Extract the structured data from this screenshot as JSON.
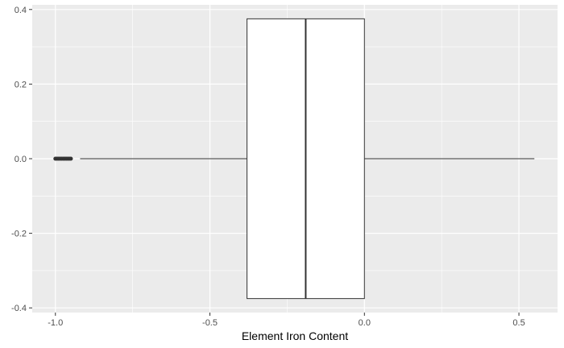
{
  "chart_data": {
    "type": "boxplot",
    "title": "",
    "xlabel": "Element Iron Content",
    "ylabel": "",
    "xlim": [
      -1.075,
      0.625
    ],
    "ylim": [
      -0.4125,
      0.4125
    ],
    "x_ticks": [
      -1.0,
      -0.5,
      0.0,
      0.5
    ],
    "x_tick_labels": [
      "-1.0",
      "-0.5",
      "0.0",
      "0.5"
    ],
    "y_ticks": [
      -0.4,
      -0.2,
      0.0,
      0.2,
      0.4
    ],
    "y_tick_labels": [
      "-0.4",
      "-0.2",
      "0.0",
      "0.2",
      "0.4"
    ],
    "box": {
      "lower_whisker": -0.92,
      "q1": -0.38,
      "median": -0.19,
      "q3": 0.0,
      "upper_whisker": 0.55,
      "box_half_width": 0.375
    },
    "outliers": [
      -1.0,
      -0.995,
      -0.99,
      -0.985,
      -0.98,
      -0.975,
      -0.97,
      -0.965,
      -0.96,
      -0.955,
      -0.95
    ],
    "grid": true,
    "colors": {
      "panel_background": "#ebebeb",
      "grid_major": "#ffffff",
      "box_fill": "#ffffff",
      "box_line": "#333333",
      "tick_text": "#4d4d4d"
    }
  }
}
